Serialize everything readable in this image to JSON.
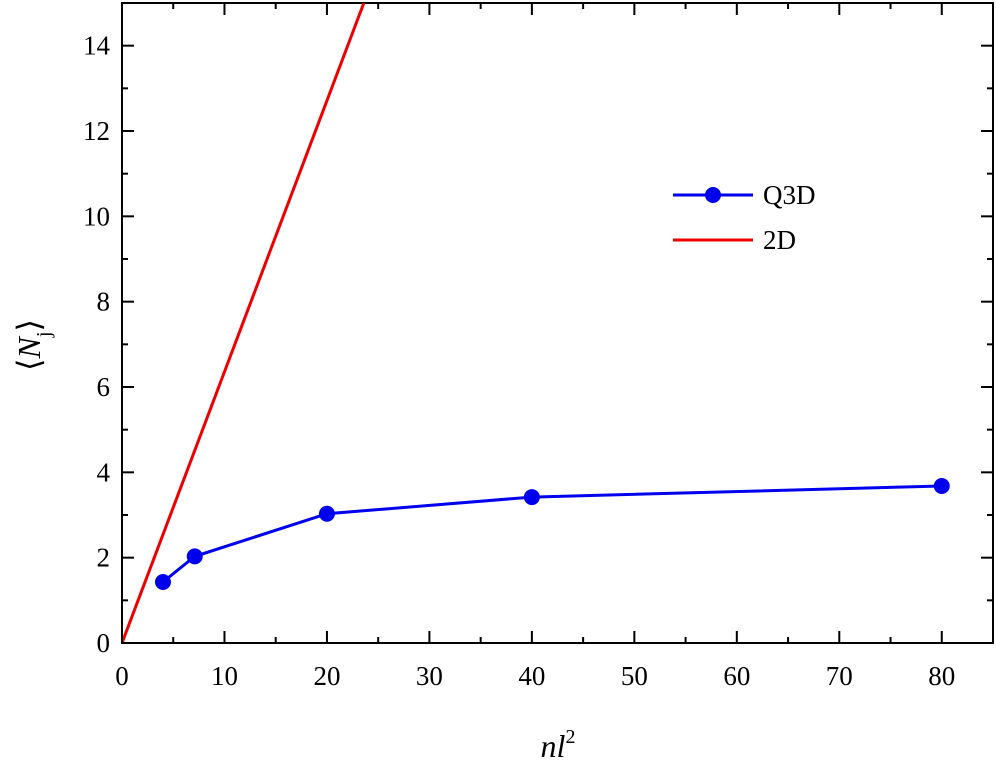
{
  "chart_data": {
    "type": "line",
    "xlabel": {
      "text": "nl",
      "superscript": "2"
    },
    "ylabel": {
      "open": "⟨",
      "text": "N",
      "subscript": "j",
      "close": "⟩"
    },
    "series": [
      {
        "name": "Q3D",
        "color": "#0000ee",
        "marker": "circle",
        "x": [
          4,
          7.1,
          20,
          40,
          80
        ],
        "values": [
          1.43,
          2.03,
          3.03,
          3.42,
          3.68
        ]
      },
      {
        "name": "2D",
        "color": "#ee0000",
        "marker": "none",
        "x": [
          0,
          23.6
        ],
        "values": [
          0,
          15
        ]
      }
    ],
    "xlim": [
      0,
      85
    ],
    "ylim": [
      0,
      15
    ],
    "xticks": [
      0,
      10,
      20,
      30,
      40,
      50,
      60,
      70,
      80
    ],
    "yticks": [
      0,
      2,
      4,
      6,
      8,
      10,
      12,
      14
    ],
    "xminorticks": [
      5,
      15,
      25,
      35,
      45,
      55,
      65,
      75
    ],
    "yminorticks": [
      1,
      3,
      5,
      7,
      9,
      11,
      13
    ],
    "legend": "upper right",
    "grid": false
  }
}
